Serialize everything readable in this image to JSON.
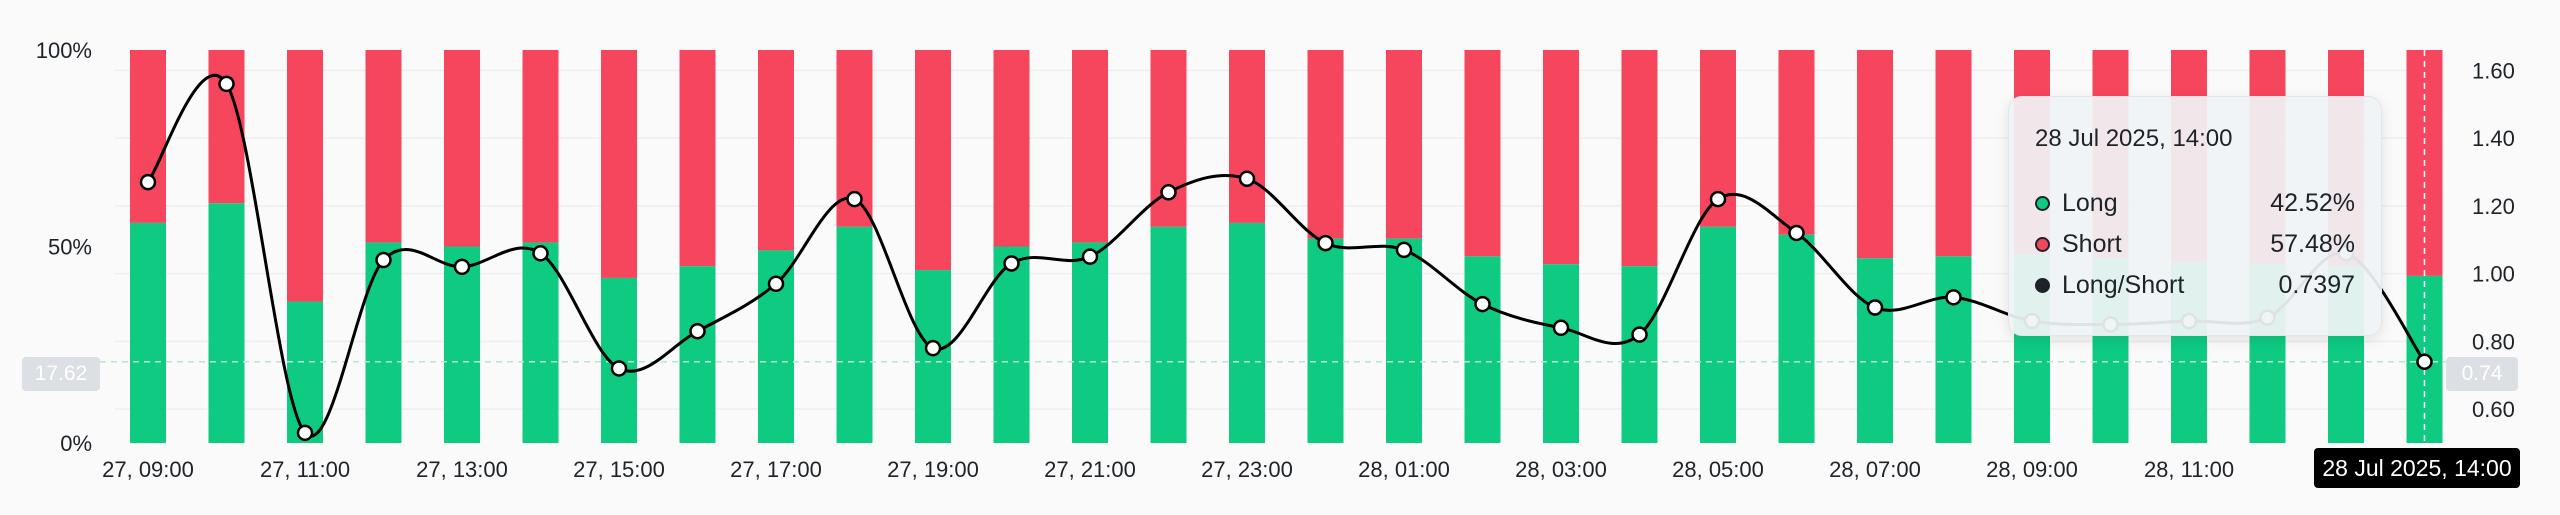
{
  "chart_data": {
    "type": "bar",
    "categories": [
      "27, 09:00",
      "27, 10:00",
      "27, 11:00",
      "27, 12:00",
      "27, 13:00",
      "27, 14:00",
      "27, 15:00",
      "27, 16:00",
      "27, 17:00",
      "27, 18:00",
      "27, 19:00",
      "27, 20:00",
      "27, 21:00",
      "27, 22:00",
      "27, 23:00",
      "28, 00:00",
      "28, 01:00",
      "28, 02:00",
      "28, 03:00",
      "28, 04:00",
      "28, 05:00",
      "28, 06:00",
      "28, 07:00",
      "28, 08:00",
      "28, 09:00",
      "28, 10:00",
      "28, 11:00",
      "28, 12:00",
      "28, 13:00",
      "28, 14:00"
    ],
    "x_tick_labels": [
      "27, 09:00",
      "27, 11:00",
      "27, 13:00",
      "27, 15:00",
      "27, 17:00",
      "27, 19:00",
      "27, 21:00",
      "27, 23:00",
      "28, 01:00",
      "28, 03:00",
      "28, 05:00",
      "28, 07:00",
      "28, 09:00",
      "28, 11:00"
    ],
    "series": [
      {
        "name": "Long",
        "values": [
          56,
          61,
          36,
          51,
          50,
          51,
          42,
          45,
          49,
          55,
          44,
          50,
          51,
          55,
          56,
          52,
          52,
          47.5,
          45.5,
          45,
          55,
          53,
          47,
          47.5,
          48,
          47,
          46,
          45.5,
          45,
          42.52
        ]
      },
      {
        "name": "Short",
        "values": [
          44,
          39,
          64,
          49,
          50,
          49,
          58,
          55,
          51,
          45,
          56,
          50,
          49,
          45,
          44,
          48,
          48,
          52.5,
          54.5,
          55,
          45,
          47,
          53,
          52.5,
          52,
          53,
          54,
          54.5,
          55,
          57.48
        ]
      },
      {
        "name": "Long/Short",
        "axis": "right",
        "values": [
          1.27,
          1.56,
          0.53,
          1.04,
          1.02,
          1.06,
          0.72,
          0.83,
          0.97,
          1.22,
          0.78,
          1.03,
          1.05,
          1.24,
          1.28,
          1.09,
          1.07,
          0.91,
          0.84,
          0.82,
          1.22,
          1.12,
          0.9,
          0.93,
          0.86,
          0.85,
          0.86,
          0.87,
          1.06,
          0.74
        ]
      }
    ],
    "y_left": {
      "ticks": [
        "0%",
        "50%",
        "100%"
      ],
      "range": [
        0,
        100
      ]
    },
    "y_right": {
      "ticks": [
        "0.60",
        "0.80",
        "1.00",
        "1.20",
        "1.40",
        "1.60"
      ],
      "range": [
        0.5,
        1.66
      ]
    },
    "crosshair": {
      "left_value": "17.62",
      "right_value": "0.74",
      "time": "28 Jul 2025, 14:00"
    },
    "colors": {
      "long": "#0ecb81",
      "short": "#f6465d",
      "line": "#000000"
    },
    "grid": true,
    "title": "",
    "xlabel": "",
    "ylabel": ""
  },
  "tooltip": {
    "title": "28 Jul 2025, 14:00",
    "rows": [
      {
        "label": "Long",
        "value": "42.52%"
      },
      {
        "label": "Short",
        "value": "57.48%"
      },
      {
        "label": "Long/Short",
        "value": "0.7397"
      }
    ]
  }
}
